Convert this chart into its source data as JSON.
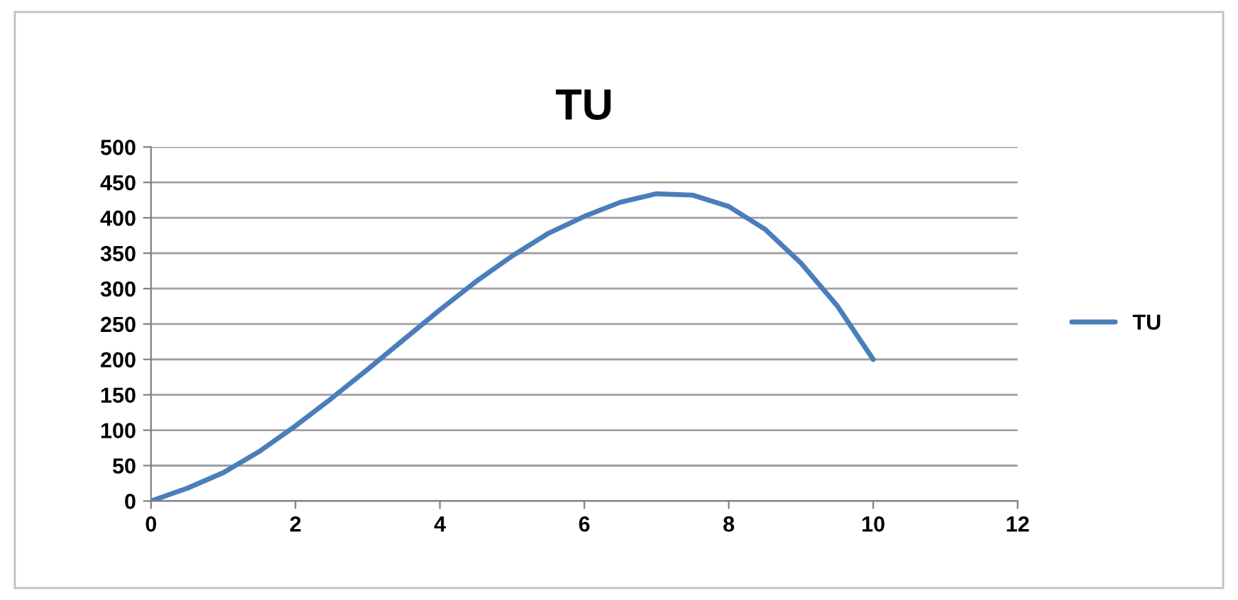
{
  "chart_data": {
    "type": "line",
    "title": "TU",
    "x": [
      0,
      0.5,
      1,
      1.5,
      2,
      2.5,
      3,
      3.5,
      4,
      4.5,
      5,
      5.5,
      6,
      6.5,
      7,
      7.5,
      8,
      8.5,
      9,
      9.5,
      10
    ],
    "series": [
      {
        "name": "TU",
        "color": "#4a7ebb",
        "values": [
          0,
          18,
          40,
          70,
          106,
          145,
          186,
          228,
          270,
          310,
          346,
          378,
          402,
          422,
          434,
          432,
          416,
          384,
          336,
          276,
          200
        ]
      }
    ],
    "xlim": [
      0,
      12
    ],
    "xticks": [
      0,
      2,
      4,
      6,
      8,
      10,
      12
    ],
    "ylim": [
      0,
      500
    ],
    "yticks": [
      0,
      50,
      100,
      150,
      200,
      250,
      300,
      350,
      400,
      450,
      500
    ],
    "grid": "y",
    "legend": "right",
    "marker": "none",
    "line_style": "solid"
  }
}
